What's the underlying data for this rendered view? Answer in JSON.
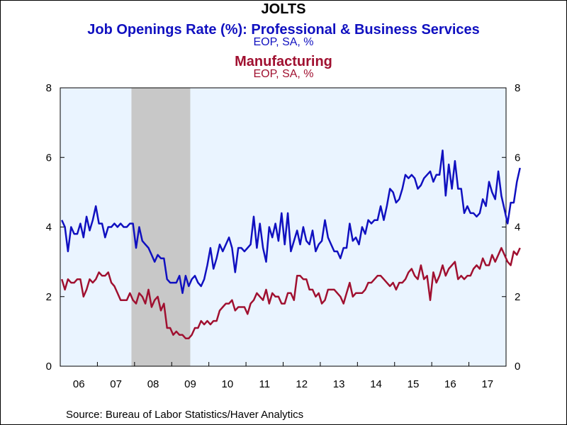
{
  "colors": {
    "series1": "#1010c0",
    "series2": "#a01030",
    "plot_bg": "#eaf4ff",
    "recession": "#c8c8c8"
  },
  "header": {
    "title": "JOLTS",
    "series1_title": "Job Openings Rate (%): Professional & Business Services",
    "series1_units": "EOP, SA, %",
    "series2_title": "Manufacturing",
    "series2_units": "EOP, SA, %"
  },
  "footer": {
    "source": "Source:  Bureau of Labor Statistics/Haver Analytics"
  },
  "chart_data": {
    "type": "line",
    "title": "JOLTS",
    "ylim": [
      0,
      8
    ],
    "yticks": [
      0,
      2,
      4,
      6,
      8
    ],
    "y_axes": "left and right",
    "xlim": [
      "2006-01",
      "2017-12"
    ],
    "x_tick_labels": [
      "06",
      "07",
      "08",
      "09",
      "10",
      "11",
      "12",
      "13",
      "14",
      "15",
      "16",
      "17"
    ],
    "grid": false,
    "shaded_period": [
      "2007-12",
      "2009-06"
    ],
    "frequency": "monthly",
    "start": "2006-01",
    "series": [
      {
        "name": "Job Openings Rate (%): Professional & Business Services",
        "units": "EOP, SA, %",
        "color": "#1010c0",
        "values": [
          4.2,
          4.0,
          3.3,
          4.0,
          3.8,
          3.8,
          4.1,
          3.7,
          4.3,
          3.9,
          4.2,
          4.6,
          4.1,
          4.1,
          3.7,
          4.0,
          4.0,
          4.1,
          4.0,
          4.1,
          4.0,
          4.0,
          4.1,
          4.1,
          3.4,
          4.0,
          3.6,
          3.5,
          3.4,
          3.2,
          3.0,
          3.2,
          3.1,
          3.1,
          2.5,
          2.4,
          2.4,
          2.4,
          2.6,
          2.1,
          2.6,
          2.3,
          2.5,
          2.6,
          2.4,
          2.3,
          2.5,
          2.9,
          3.4,
          2.8,
          3.1,
          3.5,
          3.3,
          3.5,
          3.7,
          3.4,
          2.7,
          3.4,
          3.4,
          3.3,
          3.4,
          3.5,
          4.3,
          3.4,
          4.1,
          3.4,
          3.0,
          4.0,
          3.7,
          4.1,
          3.6,
          4.4,
          3.5,
          4.4,
          3.3,
          3.6,
          3.9,
          3.5,
          4.0,
          3.6,
          3.5,
          3.9,
          3.3,
          3.5,
          3.6,
          4.2,
          3.7,
          3.5,
          3.3,
          3.3,
          3.1,
          3.4,
          3.4,
          4.1,
          3.6,
          3.7,
          3.5,
          4.0,
          3.8,
          4.2,
          4.1,
          4.2,
          4.2,
          4.6,
          4.2,
          4.6,
          5.1,
          5.0,
          4.7,
          4.8,
          5.1,
          5.5,
          5.4,
          5.5,
          5.4,
          5.1,
          5.2,
          5.4,
          5.5,
          5.6,
          5.3,
          5.5,
          5.5,
          6.2,
          4.9,
          5.8,
          5.1,
          5.9,
          5.1,
          5.1,
          4.4,
          4.6,
          4.4,
          4.4,
          4.3,
          4.4,
          4.8,
          4.6,
          5.3,
          5.0,
          4.8,
          5.6,
          4.9,
          4.5,
          4.1,
          4.7,
          4.7,
          5.3,
          5.7
        ]
      },
      {
        "name": "Manufacturing",
        "units": "EOP, SA, %",
        "color": "#a01030",
        "values": [
          2.5,
          2.2,
          2.5,
          2.4,
          2.4,
          2.5,
          2.5,
          2.0,
          2.2,
          2.5,
          2.4,
          2.5,
          2.7,
          2.6,
          2.6,
          2.7,
          2.4,
          2.3,
          2.1,
          1.9,
          1.9,
          1.9,
          2.1,
          1.9,
          1.8,
          2.1,
          2.0,
          1.8,
          2.2,
          1.7,
          1.9,
          2.0,
          1.6,
          1.8,
          1.1,
          1.1,
          0.9,
          1.0,
          0.9,
          0.9,
          0.8,
          0.8,
          0.9,
          1.1,
          1.1,
          1.3,
          1.2,
          1.3,
          1.2,
          1.3,
          1.3,
          1.6,
          1.7,
          1.8,
          1.8,
          1.9,
          1.6,
          1.7,
          1.7,
          1.7,
          1.5,
          1.8,
          1.9,
          2.1,
          2.0,
          1.9,
          2.2,
          1.8,
          2.1,
          2.0,
          2.0,
          1.8,
          1.8,
          2.1,
          2.1,
          1.9,
          2.6,
          2.6,
          2.5,
          2.5,
          2.2,
          2.2,
          2.0,
          2.1,
          1.8,
          1.9,
          2.2,
          2.2,
          2.2,
          2.1,
          2.0,
          1.8,
          2.1,
          2.4,
          2.0,
          2.1,
          2.1,
          2.1,
          2.2,
          2.4,
          2.4,
          2.5,
          2.6,
          2.6,
          2.5,
          2.4,
          2.3,
          2.4,
          2.2,
          2.4,
          2.4,
          2.5,
          2.7,
          2.8,
          2.6,
          2.5,
          2.9,
          2.5,
          2.6,
          1.9,
          2.7,
          2.4,
          2.6,
          2.9,
          2.6,
          2.8,
          2.9,
          3.0,
          2.5,
          2.6,
          2.5,
          2.6,
          2.6,
          2.8,
          2.9,
          2.8,
          3.1,
          2.9,
          2.9,
          3.2,
          3.0,
          3.2,
          3.4,
          3.2,
          3.0,
          2.9,
          3.3,
          3.2,
          3.4
        ]
      }
    ]
  }
}
